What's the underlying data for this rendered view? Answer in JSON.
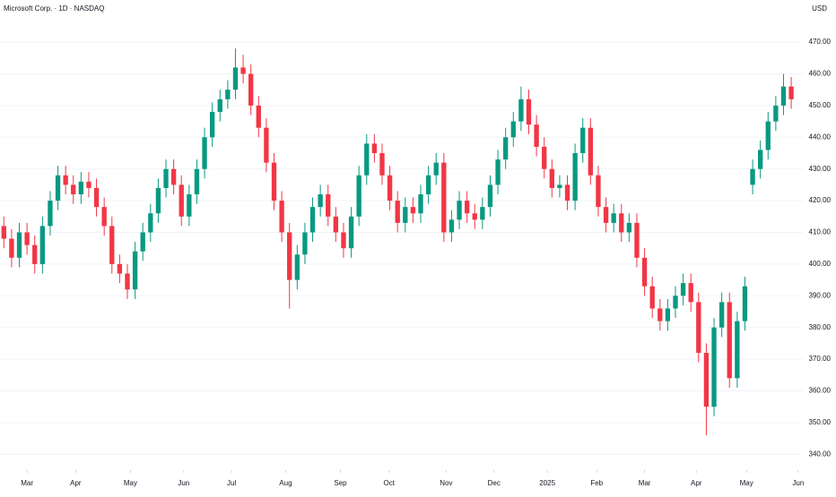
{
  "chart_data": {
    "type": "candlestick",
    "title": "Microsoft Corp. · 1D · NASDAQ",
    "currency": "USD",
    "up_color": "#089981",
    "down_color": "#f23645",
    "grid": true,
    "ylim": [
      335,
      483.3
    ],
    "yticks": [
      {
        "value": 340,
        "label": "340.00"
      },
      {
        "value": 350,
        "label": "350.00"
      },
      {
        "value": 360,
        "label": "360.00"
      },
      {
        "value": 370,
        "label": "370.00"
      },
      {
        "value": 380,
        "label": "380.00"
      },
      {
        "value": 390,
        "label": "390.00"
      },
      {
        "value": 400,
        "label": "400.00"
      },
      {
        "value": 410,
        "label": "410.00"
      },
      {
        "value": 420,
        "label": "420.00"
      },
      {
        "value": 430,
        "label": "430.00"
      },
      {
        "value": 440,
        "label": "440.00"
      },
      {
        "value": 450,
        "label": "450.00"
      },
      {
        "value": 460,
        "label": "460.00"
      },
      {
        "value": 470,
        "label": "470.00"
      }
    ],
    "xlim": [
      -0.5,
      103.5
    ],
    "xticks": [
      {
        "value": 3,
        "label": "Mar"
      },
      {
        "value": 9.3,
        "label": "Apr"
      },
      {
        "value": 16.4,
        "label": "May"
      },
      {
        "value": 23.3,
        "label": "Jun"
      },
      {
        "value": 29.5,
        "label": "Jul"
      },
      {
        "value": 36.5,
        "label": "Aug"
      },
      {
        "value": 43.6,
        "label": "Sep"
      },
      {
        "value": 49.9,
        "label": "Oct"
      },
      {
        "value": 57.3,
        "label": "Nov"
      },
      {
        "value": 63.5,
        "label": "Dec"
      },
      {
        "value": 70.4,
        "label": "2025"
      },
      {
        "value": 76.8,
        "label": "Feb"
      },
      {
        "value": 83,
        "label": "Mar"
      },
      {
        "value": 89.7,
        "label": "Apr"
      },
      {
        "value": 96.2,
        "label": "May"
      },
      {
        "value": 102.9,
        "label": "Jun"
      }
    ],
    "open": [
      412,
      408,
      402,
      410,
      406,
      400,
      412,
      420,
      428,
      425,
      422,
      426,
      424,
      418,
      412,
      400,
      397,
      392,
      404,
      410,
      416,
      424,
      430,
      425,
      415,
      422,
      430,
      440,
      448,
      452,
      455,
      462,
      460,
      450,
      443,
      432,
      420,
      410,
      395,
      403,
      410,
      418,
      422,
      415,
      410,
      405,
      415,
      428,
      438,
      435,
      428,
      420,
      413,
      418,
      416,
      422,
      428,
      432,
      410,
      414,
      420,
      416,
      414,
      418,
      425,
      433,
      440,
      445,
      452,
      444,
      437,
      430,
      424,
      425,
      420,
      435,
      443,
      428,
      418,
      413,
      416,
      410,
      413,
      402,
      393,
      386,
      382,
      386,
      390,
      394,
      388,
      372,
      355,
      380,
      388,
      364,
      382,
      425,
      430,
      436,
      445,
      450,
      456
    ],
    "high": [
      415,
      411,
      413,
      413,
      409,
      415,
      423,
      431,
      431,
      428,
      429,
      429,
      427,
      421,
      415,
      403,
      400,
      407,
      413,
      419,
      427,
      433,
      433,
      428,
      425,
      433,
      443,
      451,
      455,
      458,
      468,
      466,
      463,
      453,
      446,
      435,
      423,
      413,
      406,
      413,
      421,
      425,
      425,
      418,
      413,
      418,
      431,
      441,
      441,
      438,
      431,
      423,
      421,
      421,
      425,
      431,
      435,
      435,
      417,
      423,
      423,
      419,
      421,
      428,
      436,
      443,
      448,
      456,
      455,
      447,
      440,
      433,
      428,
      428,
      438,
      446,
      446,
      431,
      421,
      419,
      419,
      416,
      416,
      405,
      396,
      389,
      389,
      393,
      397,
      397,
      391,
      375,
      383,
      391,
      391,
      385,
      396,
      433,
      439,
      448,
      453,
      460,
      459
    ],
    "low": [
      405,
      399,
      399,
      403,
      397,
      397,
      409,
      417,
      422,
      419,
      419,
      421,
      415,
      409,
      397,
      394,
      389,
      389,
      401,
      407,
      413,
      421,
      422,
      412,
      412,
      419,
      427,
      437,
      445,
      449,
      452,
      457,
      447,
      440,
      429,
      417,
      407,
      386,
      392,
      400,
      407,
      415,
      412,
      407,
      402,
      402,
      412,
      425,
      432,
      425,
      417,
      410,
      410,
      413,
      413,
      419,
      425,
      407,
      407,
      411,
      413,
      411,
      411,
      415,
      422,
      430,
      437,
      442,
      441,
      434,
      427,
      421,
      421,
      417,
      417,
      432,
      425,
      415,
      410,
      410,
      407,
      407,
      399,
      390,
      383,
      379,
      379,
      383,
      387,
      385,
      369,
      346,
      352,
      377,
      361,
      361,
      379,
      422,
      427,
      433,
      442,
      447,
      449
    ],
    "close": [
      408,
      402,
      410,
      406,
      400,
      412,
      420,
      428,
      425,
      422,
      426,
      424,
      418,
      412,
      400,
      397,
      392,
      404,
      410,
      416,
      424,
      430,
      425,
      415,
      422,
      430,
      440,
      448,
      452,
      455,
      462,
      460,
      450,
      443,
      432,
      420,
      410,
      395,
      403,
      410,
      418,
      422,
      415,
      410,
      405,
      415,
      428,
      438,
      435,
      428,
      420,
      413,
      418,
      416,
      422,
      428,
      432,
      410,
      414,
      420,
      416,
      414,
      418,
      425,
      433,
      440,
      445,
      452,
      444,
      437,
      430,
      424,
      425,
      420,
      435,
      443,
      428,
      418,
      413,
      416,
      410,
      413,
      402,
      393,
      386,
      382,
      386,
      390,
      394,
      388,
      372,
      355,
      380,
      388,
      364,
      382,
      393,
      430,
      436,
      445,
      450,
      456,
      452
    ]
  }
}
